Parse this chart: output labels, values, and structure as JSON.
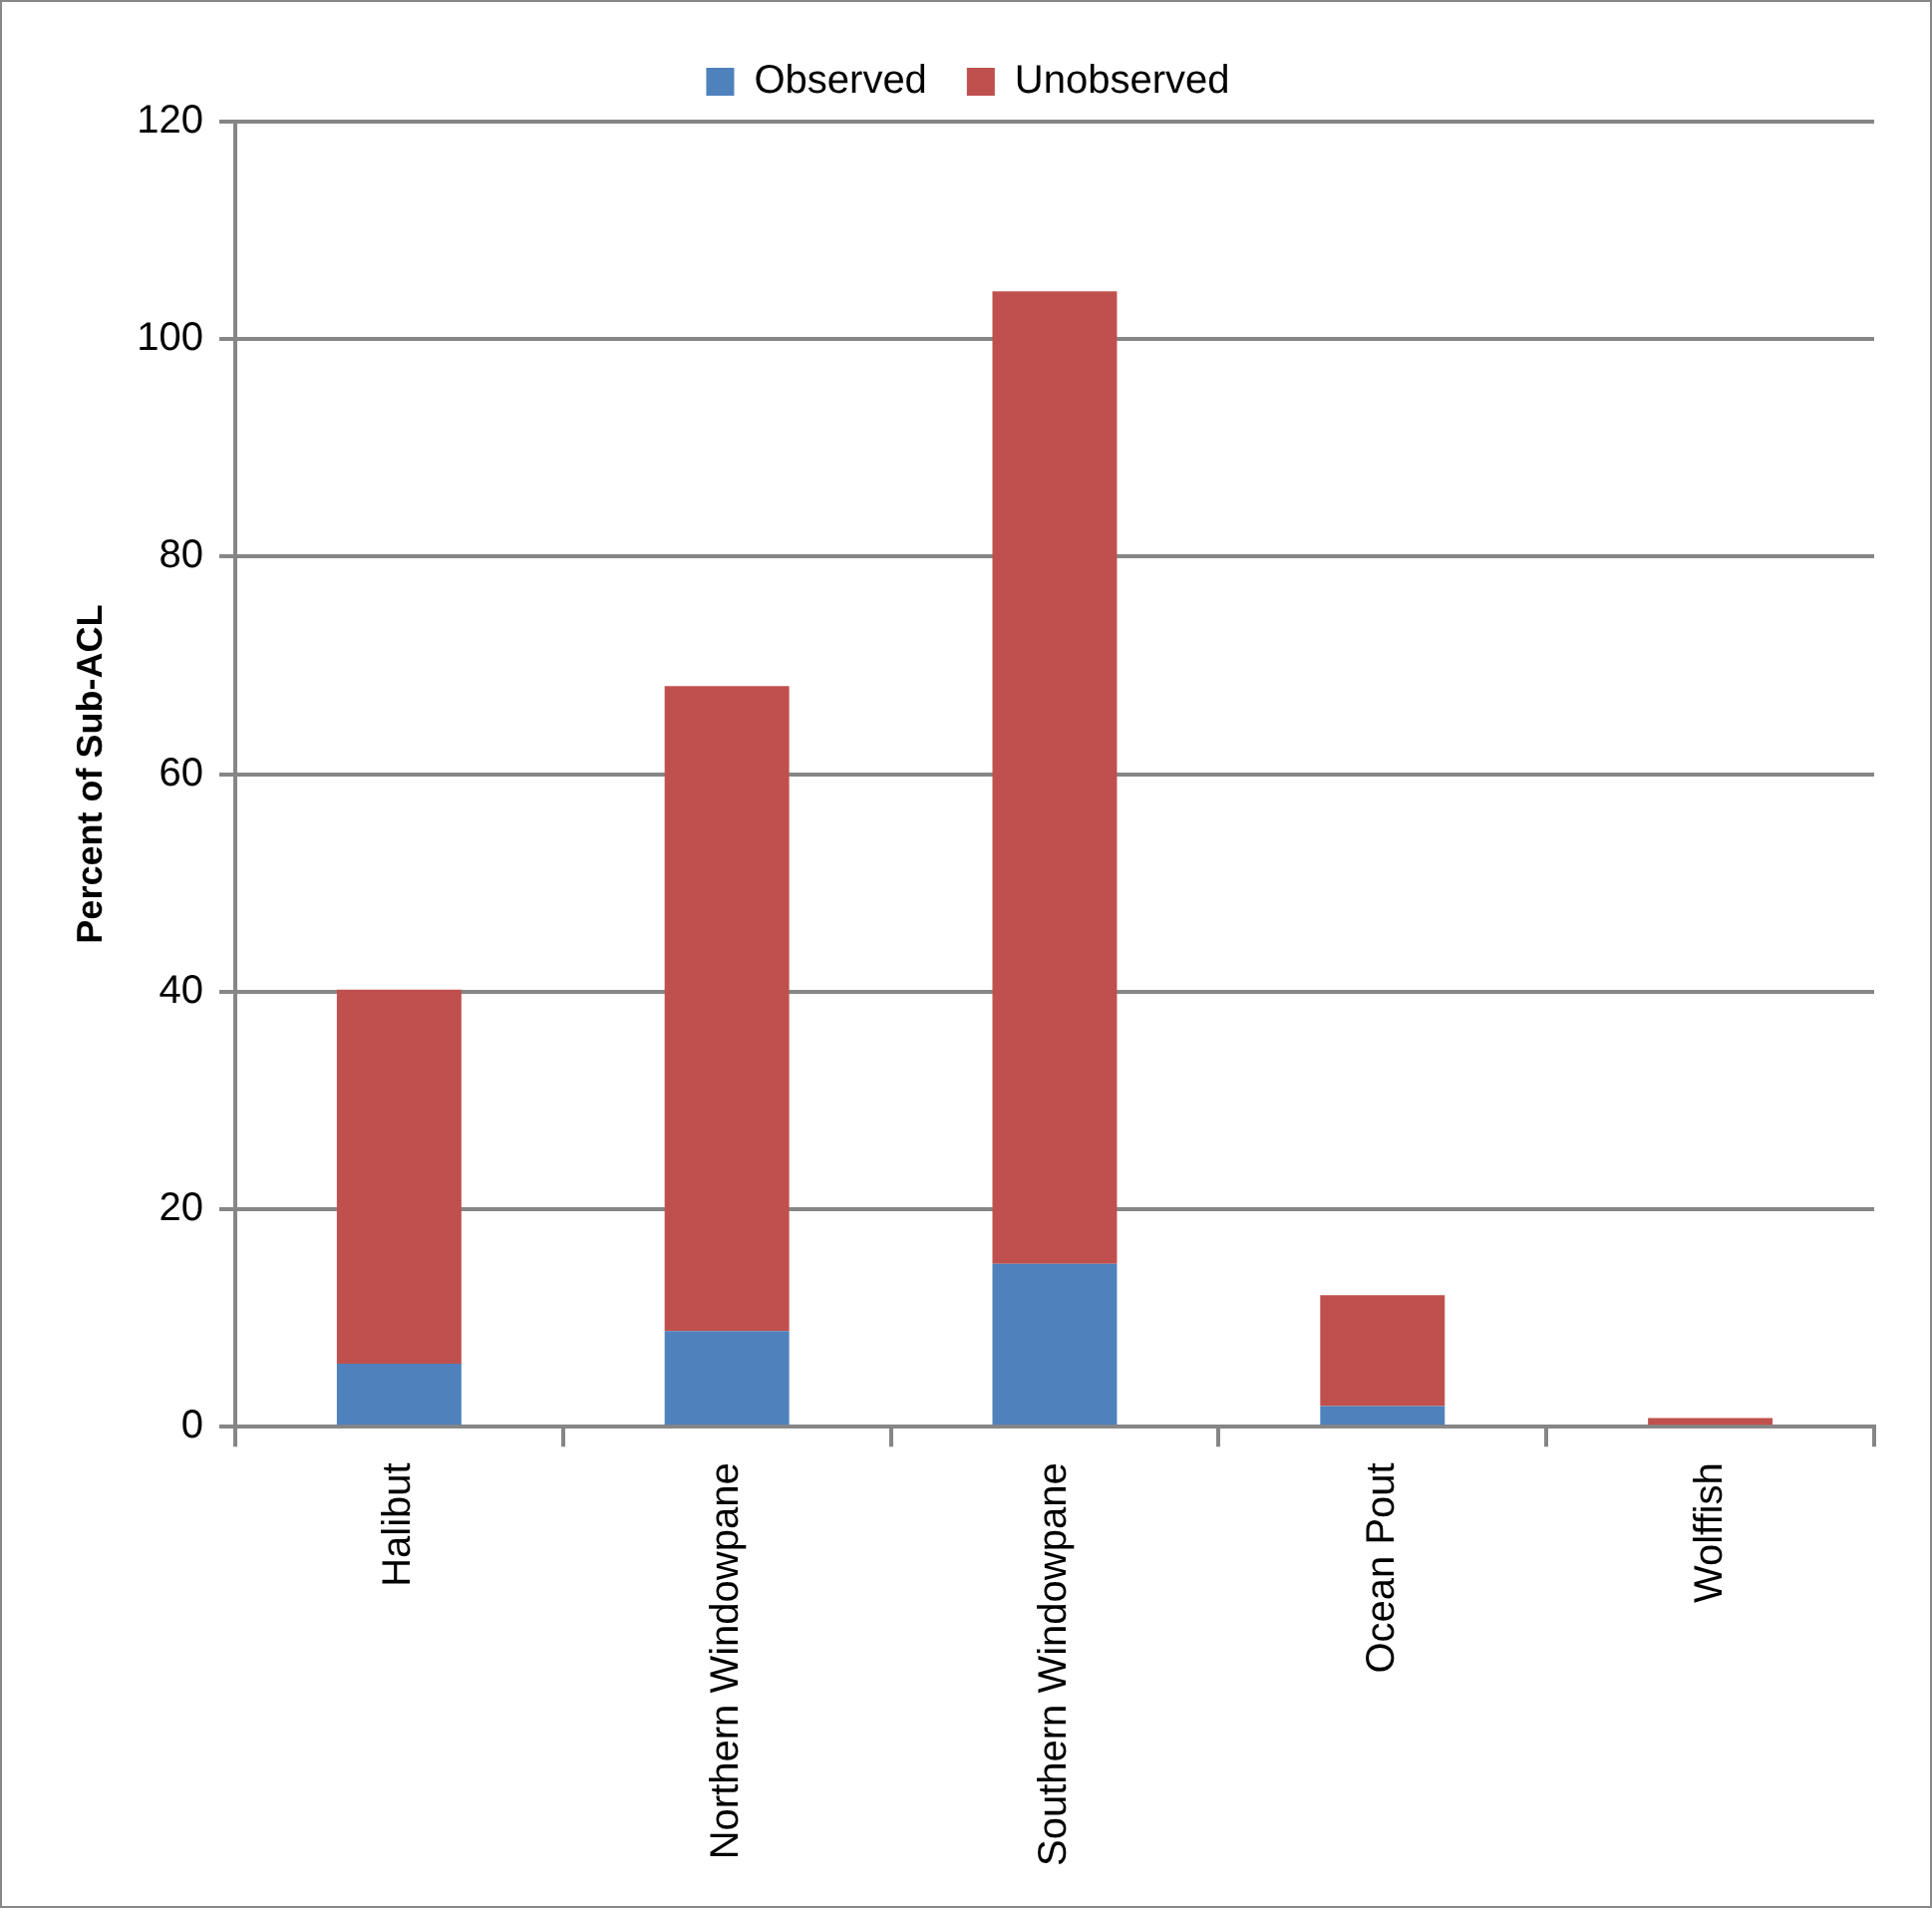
{
  "chart_data": {
    "type": "bar",
    "stacked": true,
    "ylabel": "Percent of Sub-ACL",
    "categories": [
      "Halibut",
      "Northern Windowpane",
      "Southern Windowpane",
      "Ocean Pout",
      "Wolffish"
    ],
    "series": [
      {
        "name": "Observed",
        "color": "#4f81bd",
        "values": [
          5.8,
          8.8,
          15.0,
          1.9,
          0
        ]
      },
      {
        "name": "Unobserved",
        "color": "#c0504d",
        "values": [
          34.4,
          59.3,
          89.4,
          10.2,
          0.8
        ]
      }
    ],
    "ylim": [
      0,
      120
    ],
    "yticks": [
      0,
      20,
      40,
      60,
      80,
      100,
      120
    ],
    "grid": "y",
    "legend": "top"
  }
}
